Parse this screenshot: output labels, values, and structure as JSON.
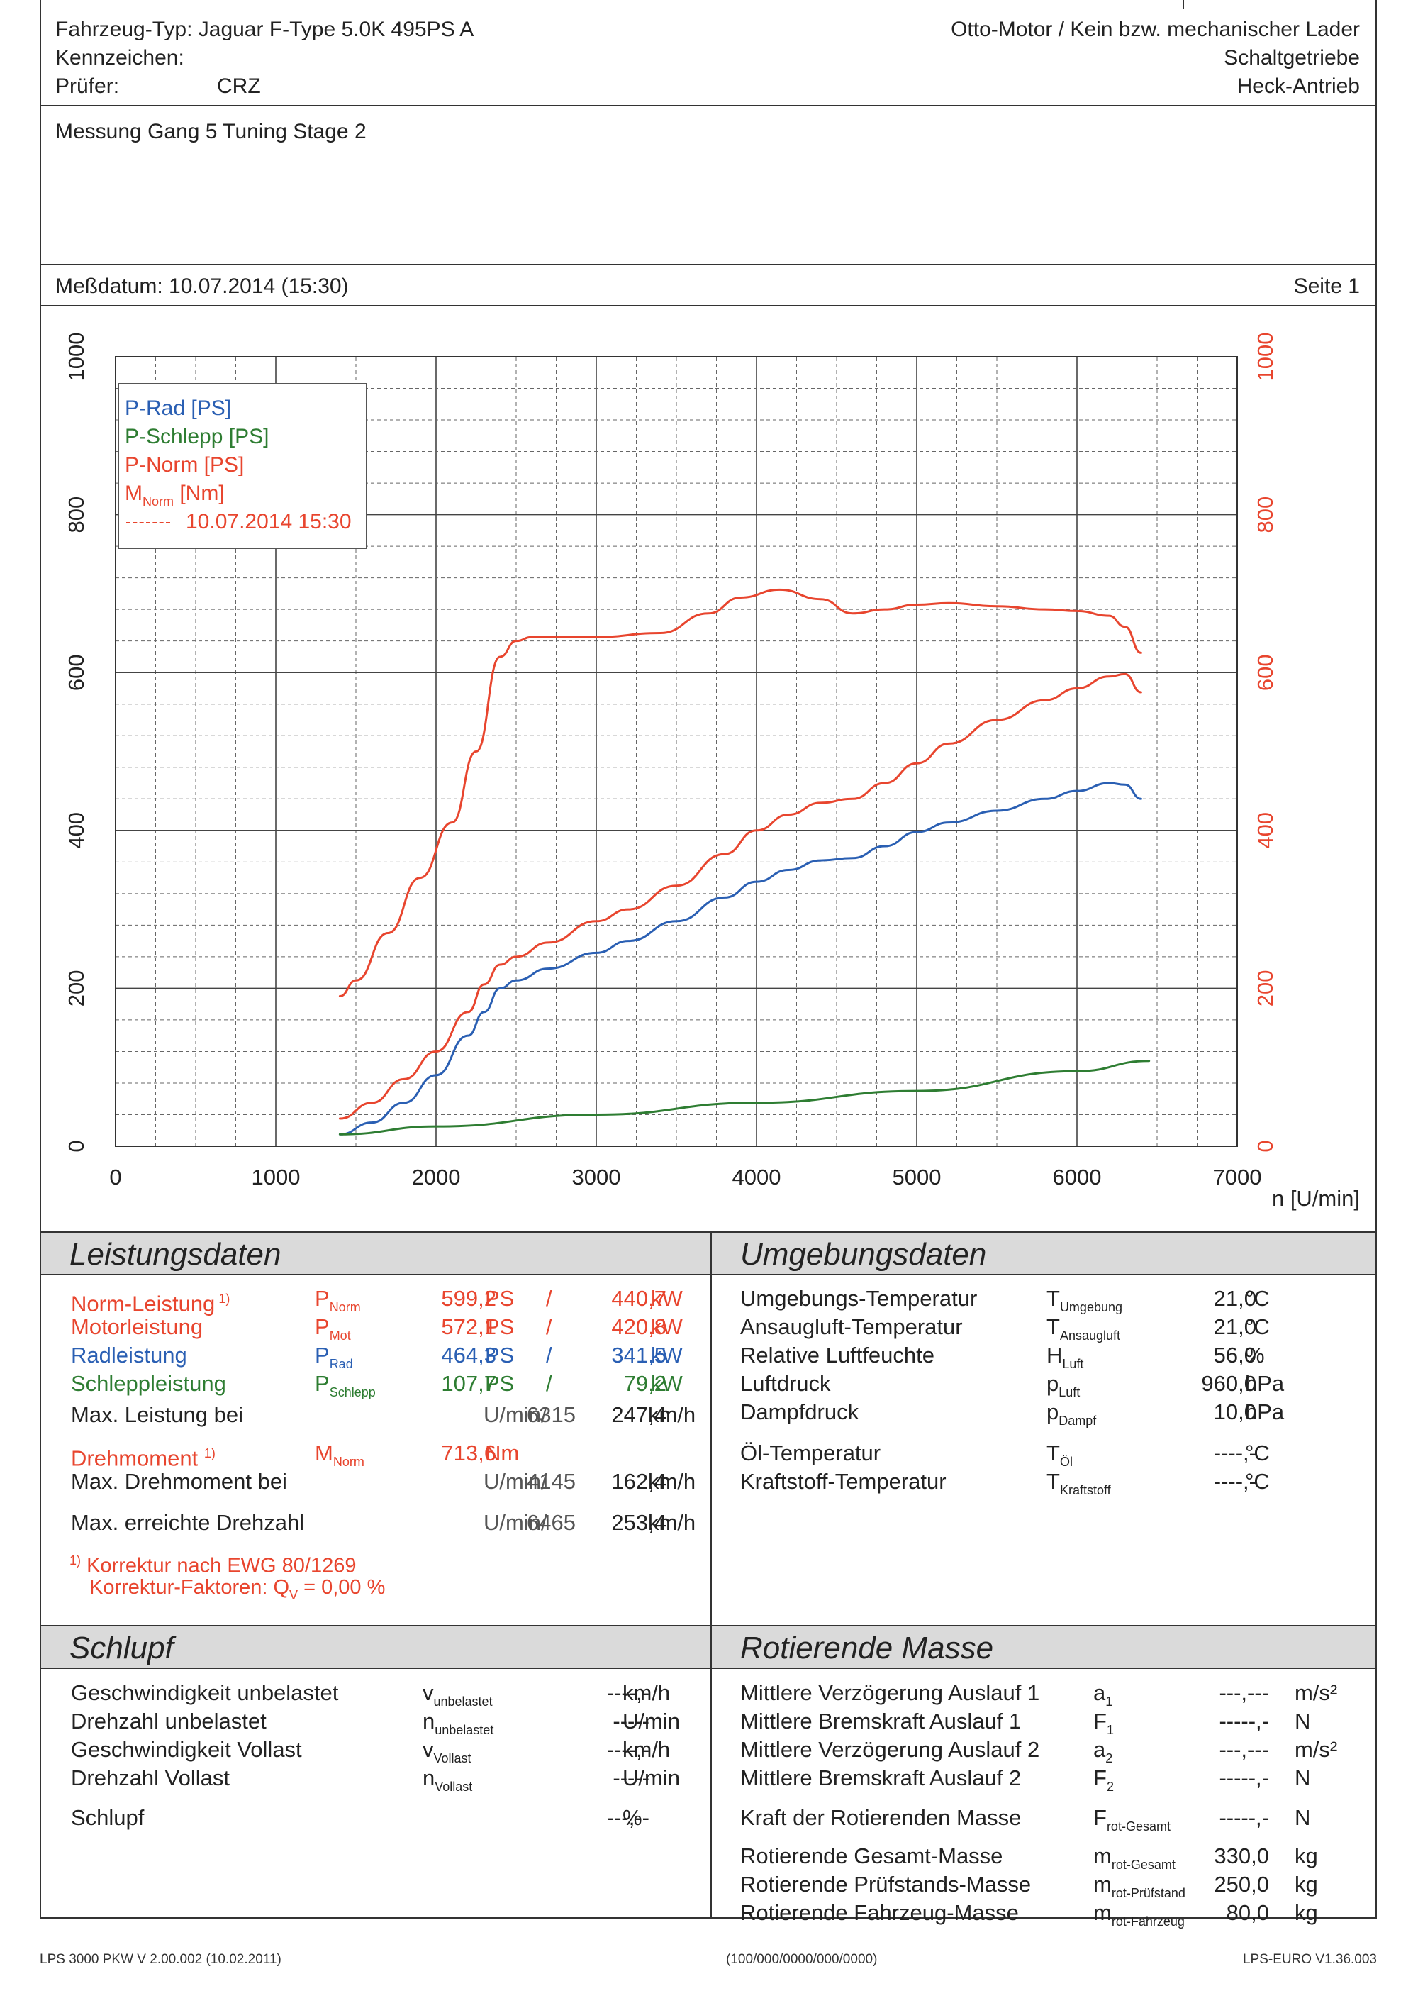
{
  "header": {
    "vehicle_type": "Fahrzeug-Typ:  Jaguar F-Type 5.0K 495PS A",
    "plate_label": "Kennzeichen:",
    "tester_label": "Prüfer:",
    "tester_value": "CRZ",
    "engine": "Otto-Motor / Kein bzw. mechanischer Lader",
    "gearbox": "Schaltgetriebe",
    "drive": "Heck-Antrieb"
  },
  "measurement": {
    "title": "Messung Gang 5 Tuning Stage 2",
    "date": "Meßdatum: 10.07.2014 (15:30)",
    "page": "Seite 1"
  },
  "legend": {
    "p_rad": "P-Rad [PS]",
    "p_schlepp": "P-Schlepp [PS]",
    "p_norm": "P-Norm [PS]",
    "m_norm_main": "M",
    "m_norm_sub": "Norm",
    "m_norm_unit": " [Nm]",
    "timestamp": "10.07.2014 15:30"
  },
  "chart_data": {
    "type": "line",
    "xlabel": "n [U/min]",
    "xlim": [
      0,
      7000
    ],
    "x_ticks": [
      "0",
      "1000",
      "2000",
      "3000",
      "4000",
      "5000",
      "6000",
      "7000"
    ],
    "ylim_left": [
      0,
      1000
    ],
    "ylim_right": [
      0,
      1000
    ],
    "y_ticks_left": [
      "0",
      "200",
      "400",
      "600",
      "800",
      "1000"
    ],
    "y_ticks_right": [
      "0",
      "200",
      "400",
      "600",
      "800",
      "1000"
    ],
    "grid": true,
    "legend_position": "top-left",
    "colors": {
      "p_rad": "#2a5fb3",
      "p_schlepp": "#2e7d32",
      "p_norm": "#e8452e",
      "m_norm": "#e8452e"
    },
    "series": [
      {
        "name": "P-Rad [PS]",
        "x": [
          1400,
          1600,
          1800,
          2000,
          2200,
          2300,
          2400,
          2500,
          2700,
          3000,
          3200,
          3500,
          3800,
          4000,
          4200,
          4400,
          4600,
          4800,
          5000,
          5200,
          5500,
          5800,
          6000,
          6200,
          6300,
          6400
        ],
        "y": [
          15,
          30,
          55,
          90,
          140,
          170,
          200,
          210,
          225,
          245,
          260,
          285,
          315,
          335,
          350,
          362,
          365,
          380,
          398,
          410,
          425,
          440,
          450,
          460,
          458,
          440
        ]
      },
      {
        "name": "P-Schlepp [PS]",
        "x": [
          1400,
          2000,
          3000,
          4000,
          5000,
          6000,
          6450
        ],
        "y": [
          15,
          25,
          40,
          55,
          70,
          95,
          108
        ]
      },
      {
        "name": "P-Norm [PS]",
        "x": [
          1400,
          1600,
          1800,
          2000,
          2200,
          2300,
          2400,
          2500,
          2700,
          3000,
          3200,
          3500,
          3800,
          4000,
          4200,
          4400,
          4600,
          4800,
          5000,
          5200,
          5500,
          5800,
          6000,
          6200,
          6300,
          6400
        ],
        "y": [
          35,
          55,
          85,
          120,
          170,
          205,
          230,
          240,
          258,
          285,
          300,
          330,
          370,
          400,
          420,
          435,
          440,
          460,
          485,
          510,
          540,
          565,
          580,
          595,
          598,
          575
        ]
      },
      {
        "name": "M Norm [Nm]",
        "x": [
          1400,
          1500,
          1700,
          1900,
          2100,
          2250,
          2400,
          2500,
          2600,
          2800,
          3000,
          3400,
          3700,
          3900,
          4145,
          4400,
          4600,
          4800,
          5000,
          5200,
          5500,
          5800,
          6000,
          6200,
          6300,
          6400
        ],
        "y": [
          190,
          210,
          270,
          340,
          410,
          500,
          620,
          640,
          645,
          645,
          645,
          650,
          675,
          695,
          705,
          693,
          675,
          680,
          686,
          688,
          684,
          680,
          678,
          672,
          658,
          625
        ]
      }
    ]
  },
  "leistung": {
    "title": "Leistungsdaten",
    "rows": [
      {
        "label": "Norm-Leistung",
        "sup": "1)",
        "sym": "P",
        "sub": "Norm",
        "v1": "599,2",
        "u1": "PS",
        "sep": "/",
        "v2": "440,7",
        "u2": "kW",
        "cls": "red"
      },
      {
        "label": "Motorleistung",
        "sup": "",
        "sym": "P",
        "sub": "Mot",
        "v1": "572,1",
        "u1": "PS",
        "sep": "/",
        "v2": "420,8",
        "u2": "kW",
        "cls": "red"
      },
      {
        "label": "Radleistung",
        "sup": "",
        "sym": "P",
        "sub": "Rad",
        "v1": "464,3",
        "u1": "PS",
        "sep": "/",
        "v2": "341,5",
        "u2": "kW",
        "cls": "blue"
      },
      {
        "label": "Schleppleistung",
        "sup": "",
        "sym": "P",
        "sub": "Schlepp",
        "v1": "107,7",
        "u1": "PS",
        "sep": "/",
        "v2": "79,2",
        "u2": "kW",
        "cls": "green"
      }
    ],
    "max_power_label": "Max. Leistung bei",
    "max_power_rpm": "6315",
    "max_power_rpm_unit": "U/min/",
    "max_power_speed": "247,4",
    "max_power_speed_unit": "km/h",
    "torque_label": "Drehmoment",
    "torque_sup": "1)",
    "torque_sym": "M",
    "torque_sub": "Norm",
    "torque_value": "713,6",
    "torque_unit": "Nm",
    "max_torque_label": "Max. Drehmoment bei",
    "max_torque_rpm": "4145",
    "max_torque_rpm_unit": "U/min/",
    "max_torque_speed": "162,4",
    "max_torque_speed_unit": "km/h",
    "max_rpm_label": "Max. erreichte Drehzahl",
    "max_rpm": "6465",
    "max_rpm_unit": "U/min/",
    "max_rpm_speed": "253,4",
    "max_rpm_speed_unit": "km/h",
    "footnote1_sup": "1)",
    "footnote1": "Korrektur nach EWG 80/1269",
    "footnote2_a": "Korrektur-Faktoren: Q",
    "footnote2_sub": "V",
    "footnote2_b": " =   0,00 %"
  },
  "umgebung": {
    "title": "Umgebungsdaten",
    "rows": [
      {
        "label": "Umgebungs-Temperatur",
        "sym": "T",
        "sub": "Umgebung",
        "value": "21,0",
        "unit": "°C"
      },
      {
        "label": "Ansaugluft-Temperatur",
        "sym": "T",
        "sub": "Ansaugluft",
        "value": "21,0",
        "unit": "°C"
      },
      {
        "label": "Relative Luftfeuchte",
        "sym": "H",
        "sub": "Luft",
        "value": "56,0",
        "unit": "%"
      },
      {
        "label": "Luftdruck",
        "sym": "p",
        "sub": "Luft",
        "value": "960,0",
        "unit": "hPa"
      },
      {
        "label": "Dampfdruck",
        "sym": "p",
        "sub": "Dampf",
        "value": "10,0",
        "unit": "hPa"
      },
      {
        "label": "Öl-Temperatur",
        "sym": "T",
        "sub": "Öl",
        "value": "----,-",
        "unit": "°C"
      },
      {
        "label": "Kraftstoff-Temperatur",
        "sym": "T",
        "sub": "Kraftstoff",
        "value": "----,-",
        "unit": "°C"
      }
    ]
  },
  "schlupf": {
    "title": "Schlupf",
    "rows": [
      {
        "label": "Geschwindigkeit unbelastet",
        "sym": "v",
        "sub": "unbelastet",
        "value": "----,-",
        "unit": "km/h"
      },
      {
        "label": "Drehzahl unbelastet",
        "sym": "n",
        "sub": "unbelastet",
        "value": "-----",
        "unit": "U/min"
      },
      {
        "label": "Geschwindigkeit Vollast",
        "sym": "v",
        "sub": "Vollast",
        "value": "----,-",
        "unit": "km/h"
      },
      {
        "label": "Drehzahl Vollast",
        "sym": "n",
        "sub": "Vollast",
        "value": "-----",
        "unit": "U/min"
      },
      {
        "label": "Schlupf",
        "sym": "",
        "sub": "",
        "value": "---,--",
        "unit": "%"
      }
    ]
  },
  "rotierend": {
    "title": "Rotierende Masse",
    "rows": [
      {
        "label": "Mittlere Verzögerung Auslauf 1",
        "sym": "a",
        "sub": "1",
        "value": "---,---",
        "unit": "m/s²"
      },
      {
        "label": "Mittlere Bremskraft Auslauf 1",
        "sym": "F",
        "sub": "1",
        "value": "-----,-",
        "unit": "N"
      },
      {
        "label": "Mittlere Verzögerung Auslauf 2",
        "sym": "a",
        "sub": "2",
        "value": "---,---",
        "unit": "m/s²"
      },
      {
        "label": "Mittlere Bremskraft Auslauf 2",
        "sym": "F",
        "sub": "2",
        "value": "-----,-",
        "unit": "N"
      },
      {
        "label": "Kraft der Rotierenden Masse",
        "sym": "F",
        "sub": "rot-Gesamt",
        "value": "-----,-",
        "unit": "N"
      },
      {
        "label": "Rotierende Gesamt-Masse",
        "sym": "m",
        "sub": "rot-Gesamt",
        "value": "330,0",
        "unit": "kg"
      },
      {
        "label": "Rotierende Prüfstands-Masse",
        "sym": "m",
        "sub": "rot-Prüfstand",
        "value": "250,0",
        "unit": "kg"
      },
      {
        "label": "Rotierende Fahrzeug-Masse",
        "sym": "m",
        "sub": "rot-Fahrzeug",
        "value": "80,0",
        "unit": "kg"
      }
    ]
  },
  "footer": {
    "left": "LPS 3000 PKW V 2.00.002 (10.02.2011)",
    "center": "(100/000/0000/000/0000)",
    "right": "LPS-EURO V1.36.003"
  }
}
